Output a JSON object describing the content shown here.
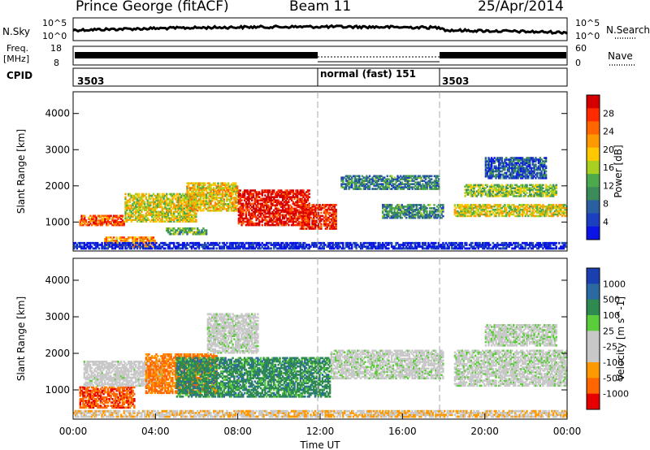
{
  "header": {
    "station": "Prince George (fitACF)",
    "beam": "Beam 11",
    "date": "25/Apr/2014"
  },
  "top_panels": {
    "nsky_label": "N.Sky",
    "nsky_top_tick": "10^5",
    "nsky_bottom_tick": "10^0",
    "nsearch_label": "N.Search",
    "nsearch_top_tick": "10^5",
    "nsearch_bottom_tick": "10^0",
    "freq_label_line1": "Freq.",
    "freq_label_line2": "[MHz]",
    "freq_top_tick": "18",
    "freq_bottom_tick": "8",
    "nave_label": "Nave",
    "nave_top_tick": "60",
    "nave_bottom_tick": "0",
    "cpid_label": "CPID",
    "cpid_segments": [
      "3503",
      "normal (fast) 151",
      "3503"
    ]
  },
  "chart_data": [
    {
      "type": "heatmap",
      "name": "power",
      "ylabel": "Slant Range [km]",
      "ylim": [
        200,
        4600
      ],
      "yticks": [
        "1000",
        "2000",
        "3000",
        "4000"
      ],
      "colorbar_label": "Power [dB]",
      "colorbar_ticks": [
        "28",
        "24",
        "20",
        "16",
        "12",
        "8",
        "4"
      ],
      "colorbar_colors": [
        "#d40000",
        "#ff2a00",
        "#ff6600",
        "#ff9900",
        "#ffc800",
        "#a8d020",
        "#4caa4c",
        "#3c8c5a",
        "#2a5fa0",
        "#1a3fc0",
        "#0a14e6"
      ],
      "blobs": [
        {
          "t0": 0.3,
          "t1": 2.5,
          "r0": 900,
          "r1": 1200,
          "level": 0.8
        },
        {
          "t0": 1.5,
          "t1": 4.0,
          "r0": 300,
          "r1": 600,
          "level": 0.7
        },
        {
          "t0": 2.5,
          "t1": 6.0,
          "r0": 1000,
          "r1": 1800,
          "level": 0.55
        },
        {
          "t0": 5.5,
          "t1": 8.0,
          "r0": 1300,
          "r1": 2100,
          "level": 0.6
        },
        {
          "t0": 8.0,
          "t1": 11.5,
          "r0": 900,
          "r1": 1900,
          "level": 0.95
        },
        {
          "t0": 11.0,
          "t1": 12.8,
          "r0": 800,
          "r1": 1500,
          "level": 0.9
        },
        {
          "t0": 13.0,
          "t1": 17.8,
          "r0": 1900,
          "r1": 2300,
          "level": 0.3
        },
        {
          "t0": 15.0,
          "t1": 18.0,
          "r0": 1100,
          "r1": 1500,
          "level": 0.3
        },
        {
          "t0": 18.5,
          "t1": 24.0,
          "r0": 1150,
          "r1": 1500,
          "level": 0.55
        },
        {
          "t0": 19.0,
          "t1": 23.5,
          "r0": 1700,
          "r1": 2050,
          "level": 0.45
        },
        {
          "t0": 20.0,
          "t1": 23.0,
          "r0": 2200,
          "r1": 2800,
          "level": 0.2
        },
        {
          "t0": 4.5,
          "t1": 6.5,
          "r0": 650,
          "r1": 850,
          "level": 0.4
        },
        {
          "t0": 0.0,
          "t1": 24.0,
          "r0": 250,
          "r1": 450,
          "level": 0.05
        }
      ]
    },
    {
      "type": "heatmap",
      "name": "velocity",
      "xlabel": "Time UT",
      "ylabel": "Slant Range [km]",
      "ylim": [
        200,
        4600
      ],
      "xlim": [
        0,
        24
      ],
      "xticks": [
        "00:00",
        "04:00",
        "08:00",
        "12:00",
        "16:00",
        "20:00",
        "00:00"
      ],
      "yticks": [
        "1000",
        "2000",
        "3000",
        "4000"
      ],
      "colorbar_label": "Velocity [m s^-1]",
      "colorbar_ticks": [
        "1000",
        "500",
        "100",
        "25",
        "-25",
        "-100",
        "-500",
        "-1000"
      ],
      "colorbar_colors": [
        "#1a3fb0",
        "#2a6aa0",
        "#2e8a4e",
        "#5ccd3a",
        "#c8c8c8",
        "#c8c8c8",
        "#ff9900",
        "#ff6600",
        "#e60000"
      ],
      "blobs": [
        {
          "t0": 0.3,
          "t1": 3.0,
          "r0": 500,
          "r1": 1100,
          "level": -0.7
        },
        {
          "t0": 0.5,
          "t1": 4.5,
          "r0": 1100,
          "r1": 1800,
          "level": -0.05
        },
        {
          "t0": 3.5,
          "t1": 7.0,
          "r0": 900,
          "r1": 2000,
          "level": -0.6
        },
        {
          "t0": 5.0,
          "t1": 12.5,
          "r0": 800,
          "r1": 1900,
          "level": 0.45
        },
        {
          "t0": 6.5,
          "t1": 9.0,
          "r0": 2000,
          "r1": 3100,
          "level": -0.02
        },
        {
          "t0": 12.5,
          "t1": 18.0,
          "r0": 1300,
          "r1": 2100,
          "level": 0.0
        },
        {
          "t0": 18.5,
          "t1": 24.0,
          "r0": 1100,
          "r1": 2100,
          "level": 0.0
        },
        {
          "t0": 20.0,
          "t1": 23.5,
          "r0": 2200,
          "r1": 2800,
          "level": 0.01
        },
        {
          "t0": 0.0,
          "t1": 24.0,
          "r0": 250,
          "r1": 450,
          "level": -0.3
        }
      ]
    }
  ]
}
